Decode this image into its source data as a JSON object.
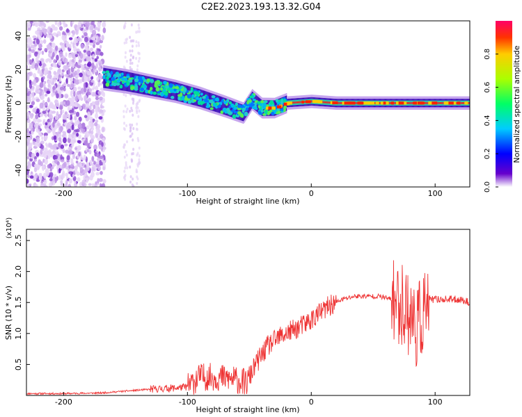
{
  "chart_data": [
    {
      "type": "heatmap",
      "title": "C2E2.2023.193.13.32.G04",
      "xlabel": "Height of straight line (km)",
      "ylabel": "Frequency (Hz)",
      "xlim": [
        -230,
        128
      ],
      "ylim": [
        -50,
        49
      ],
      "xticks": [
        -200,
        -100,
        0,
        100
      ],
      "yticks": [
        -40,
        -20,
        0,
        20,
        40
      ],
      "grid": false,
      "colorbar": {
        "label": "Normalized spectral amplitude",
        "ticks": [
          0.0,
          0.2,
          0.4,
          0.6,
          0.8
        ],
        "range": [
          0,
          1
        ]
      },
      "trace": [
        {
          "x": -168,
          "y": 15
        },
        {
          "x": -150,
          "y": 13
        },
        {
          "x": -130,
          "y": 10
        },
        {
          "x": -110,
          "y": 7
        },
        {
          "x": -90,
          "y": 3
        },
        {
          "x": -70,
          "y": -2
        },
        {
          "x": -55,
          "y": -6
        },
        {
          "x": -48,
          "y": 2
        },
        {
          "x": -40,
          "y": -3
        },
        {
          "x": -30,
          "y": -3
        },
        {
          "x": -20,
          "y": 0
        },
        {
          "x": 0,
          "y": 1
        },
        {
          "x": 20,
          "y": 0
        },
        {
          "x": 60,
          "y": 0
        },
        {
          "x": 90,
          "y": 0
        },
        {
          "x": 128,
          "y": 0
        }
      ]
    },
    {
      "type": "line",
      "xlabel": "Height of straight line (km)",
      "ylabel": "SNR (10 * v/v)",
      "y_multiplier_label": "(x10⁴)",
      "xlim": [
        -230,
        128
      ],
      "ylim": [
        0,
        2.68
      ],
      "xticks": [
        -200,
        -100,
        0,
        100
      ],
      "yticks": [
        0.5,
        1.0,
        1.5,
        2.0,
        2.5
      ],
      "grid": false,
      "series": [
        {
          "color": "#ee3333",
          "x": [
            -230,
            -200,
            -170,
            -150,
            -130,
            -110,
            -100,
            -90,
            -80,
            -70,
            -60,
            -52,
            -45,
            -35,
            -25,
            -15,
            -5,
            5,
            15,
            25,
            35,
            45,
            55,
            65,
            70,
            75,
            80,
            85,
            90,
            95,
            100,
            110,
            120,
            128
          ],
          "y": [
            0.03,
            0.03,
            0.04,
            0.07,
            0.1,
            0.12,
            0.14,
            0.3,
            0.3,
            0.28,
            0.25,
            0.2,
            0.5,
            0.8,
            0.95,
            1.05,
            1.15,
            1.3,
            1.45,
            1.55,
            1.6,
            1.6,
            1.6,
            1.55,
            1.5,
            1.45,
            1.3,
            1.1,
            1.3,
            1.55,
            1.55,
            1.55,
            1.55,
            1.5
          ]
        }
      ]
    }
  ]
}
